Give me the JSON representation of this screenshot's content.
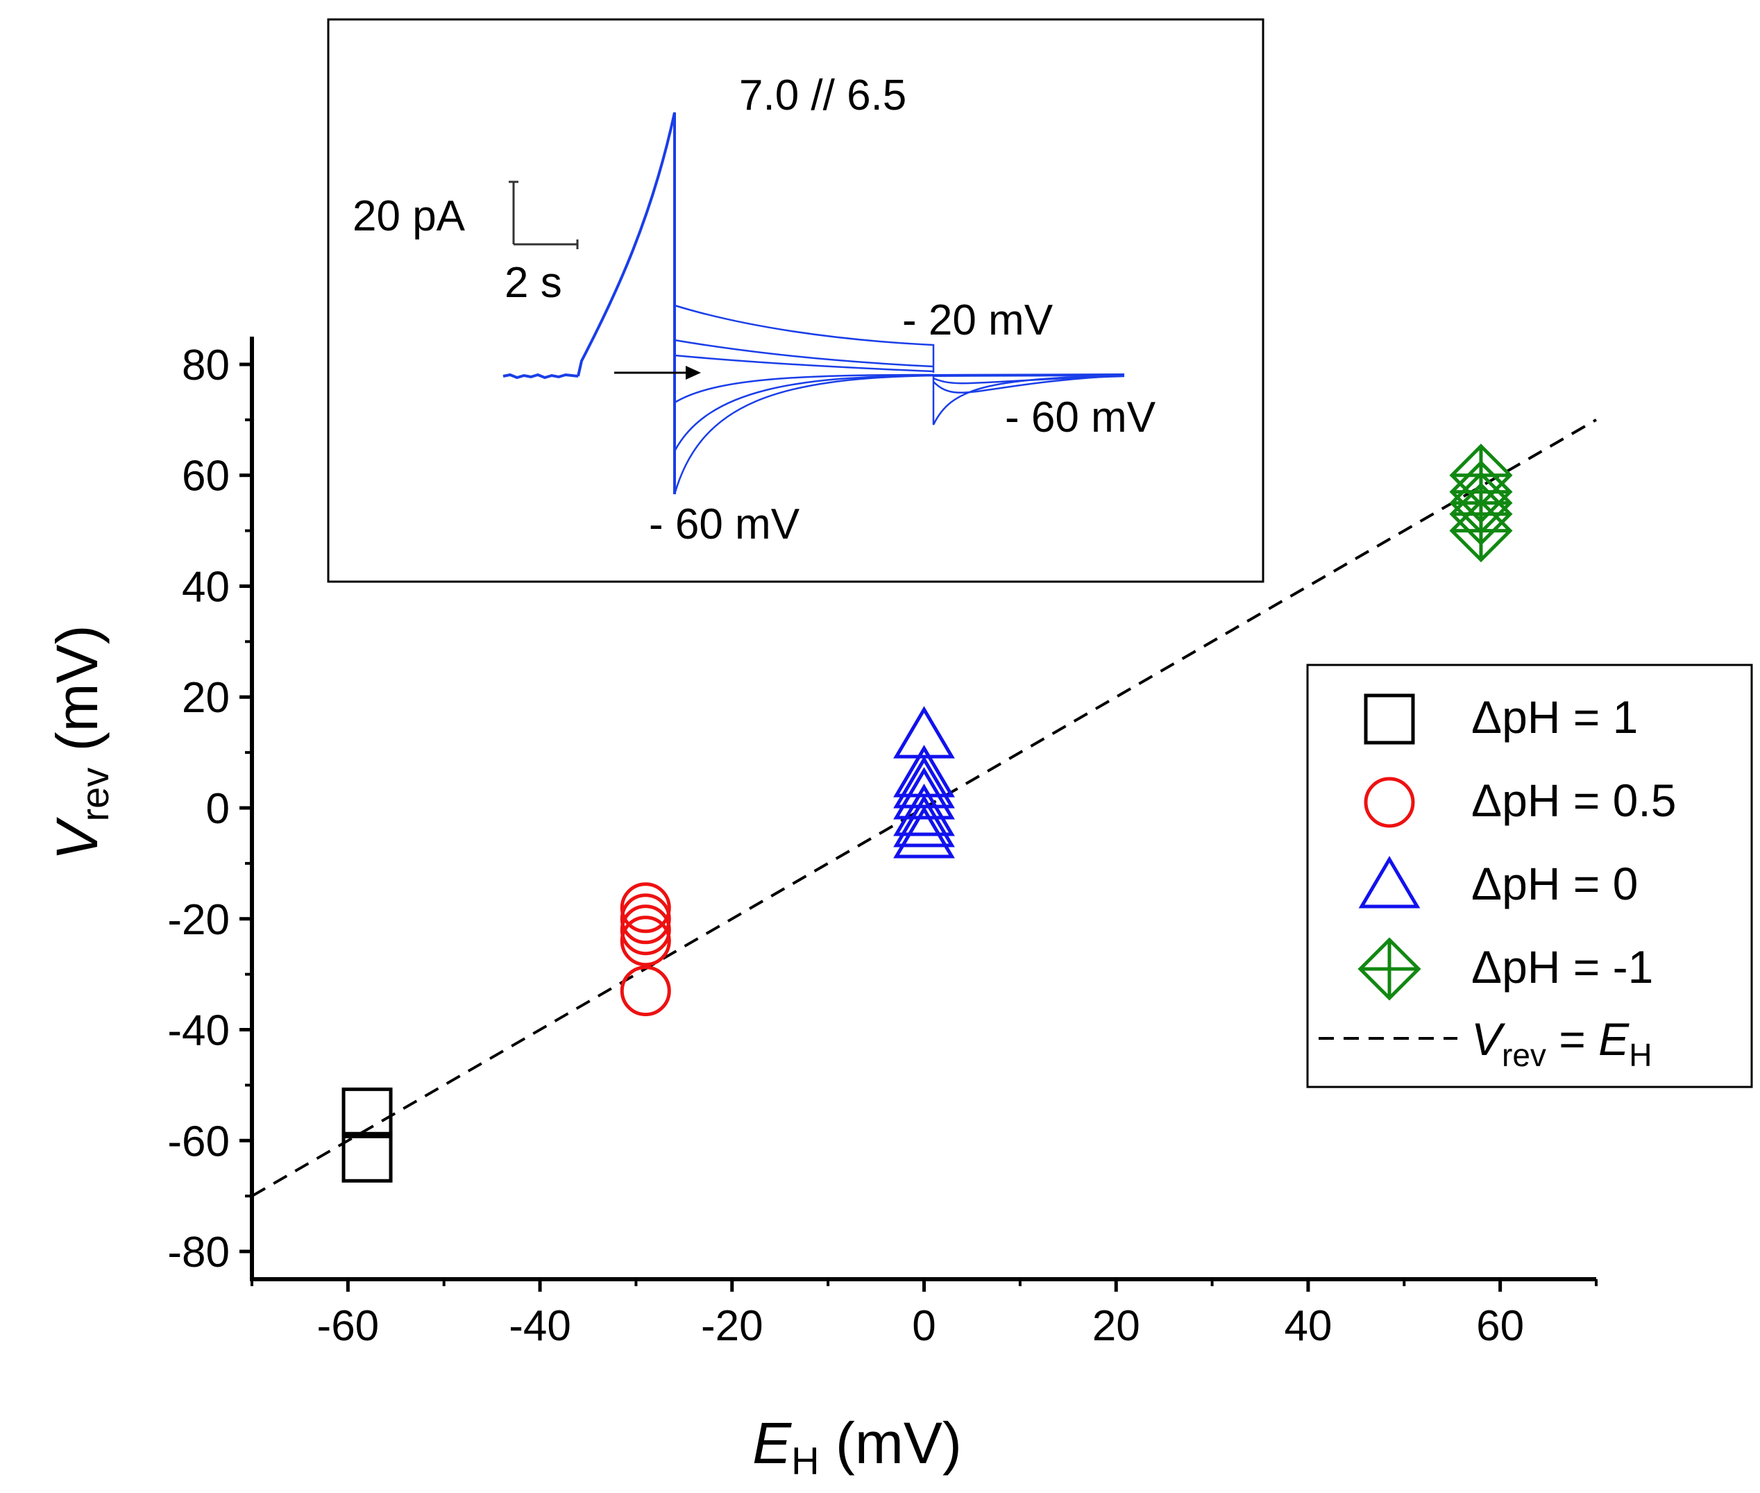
{
  "chart_data": {
    "type": "scatter",
    "title": "",
    "xlabel": {
      "main": "E",
      "sub": "H",
      "unit": " (mV)"
    },
    "ylabel": {
      "main": "V",
      "sub": "rev",
      "unit": " (mV)"
    },
    "xlim": [
      -70,
      70
    ],
    "ylim": [
      -85,
      85
    ],
    "x_ticks": [
      -60,
      -40,
      -20,
      0,
      20,
      40,
      60
    ],
    "y_ticks": [
      -80,
      -60,
      -40,
      -20,
      0,
      20,
      40,
      60,
      80
    ],
    "x_tick_labels": [
      "-60",
      "-40",
      "-20",
      "0",
      "20",
      "40",
      "60"
    ],
    "y_tick_labels": [
      "-80",
      "-60",
      "-40",
      "-20",
      "0",
      "20",
      "40",
      "60",
      "80"
    ],
    "grid": false,
    "legend_position": "right",
    "series": [
      {
        "name": "ΔpH = 1",
        "label_prefix": "ΔpH = ",
        "label_value": "1",
        "marker": "square",
        "color": "#000000",
        "x": [
          -58,
          -58
        ],
        "y": [
          -55,
          -63
        ]
      },
      {
        "name": "ΔpH = 0.5",
        "label_prefix": "ΔpH = ",
        "label_value": "0.5",
        "marker": "circle",
        "color": "#ee1111",
        "x": [
          -29,
          -29,
          -29,
          -29,
          -29
        ],
        "y": [
          -18,
          -20,
          -22,
          -24,
          -33
        ]
      },
      {
        "name": "ΔpH = 0",
        "label_prefix": "ΔpH = ",
        "label_value": "0",
        "marker": "triangle",
        "color": "#1111ee",
        "x": [
          0,
          0,
          0,
          0,
          0,
          0,
          0
        ],
        "y": [
          13,
          6,
          4,
          2,
          -1,
          -3,
          -5
        ]
      },
      {
        "name": "ΔpH = -1",
        "label_prefix": "ΔpH = ",
        "label_value": "-1",
        "marker": "diamond-cross",
        "color": "#118811",
        "x": [
          58,
          58,
          58,
          58,
          58
        ],
        "y": [
          60,
          57,
          55,
          53,
          50
        ]
      }
    ],
    "reference_line": {
      "name": "Vrev = EH",
      "label": {
        "v": "V",
        "vsub": "rev",
        "eq": " = ",
        "e": "E",
        "esub": "H"
      },
      "color": "#000000",
      "style": "dashed",
      "x": [
        -70,
        70
      ],
      "y": [
        -70,
        70
      ]
    },
    "inset": {
      "title": "7.0 // 6.5",
      "trace_color": "#1a3ee8",
      "scale_current": "20 pA",
      "scale_time": "2 s",
      "annotations": [
        "- 20 mV",
        "- 60 mV",
        "- 60 mV"
      ]
    }
  }
}
